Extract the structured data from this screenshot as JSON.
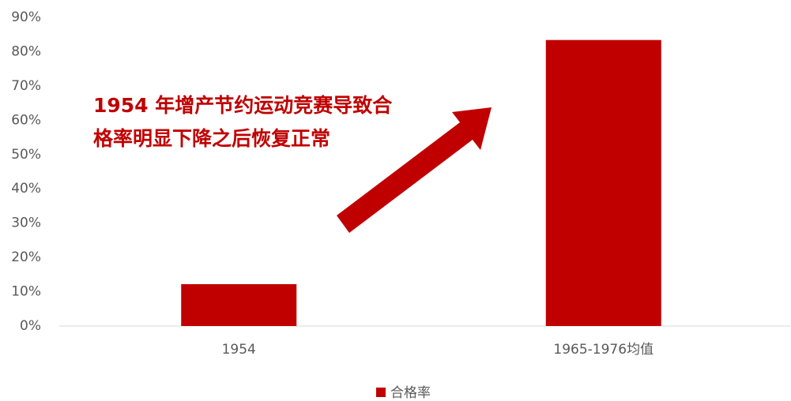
{
  "chart_data": {
    "type": "bar",
    "categories": [
      "1954",
      "1965-1976均值"
    ],
    "series": [
      {
        "name": "合格率",
        "color": "#c00000",
        "values": [
          12.2,
          83.4
        ]
      }
    ],
    "ylim": [
      0,
      90
    ],
    "yticks": [
      {
        "value": 0,
        "label": "0%"
      },
      {
        "value": 10,
        "label": "10%"
      },
      {
        "value": 20,
        "label": "20%"
      },
      {
        "value": 30,
        "label": "30%"
      },
      {
        "value": 40,
        "label": "40%"
      },
      {
        "value": 50,
        "label": "50%"
      },
      {
        "value": 60,
        "label": "60%"
      },
      {
        "value": 70,
        "label": "70%"
      },
      {
        "value": 80,
        "label": "80%"
      },
      {
        "value": 90,
        "label": "90%"
      }
    ],
    "annotation": [
      "1954 年增产节约运动竞赛导致合",
      "格率明显下降之后恢复正常"
    ],
    "legend": "bottom"
  }
}
